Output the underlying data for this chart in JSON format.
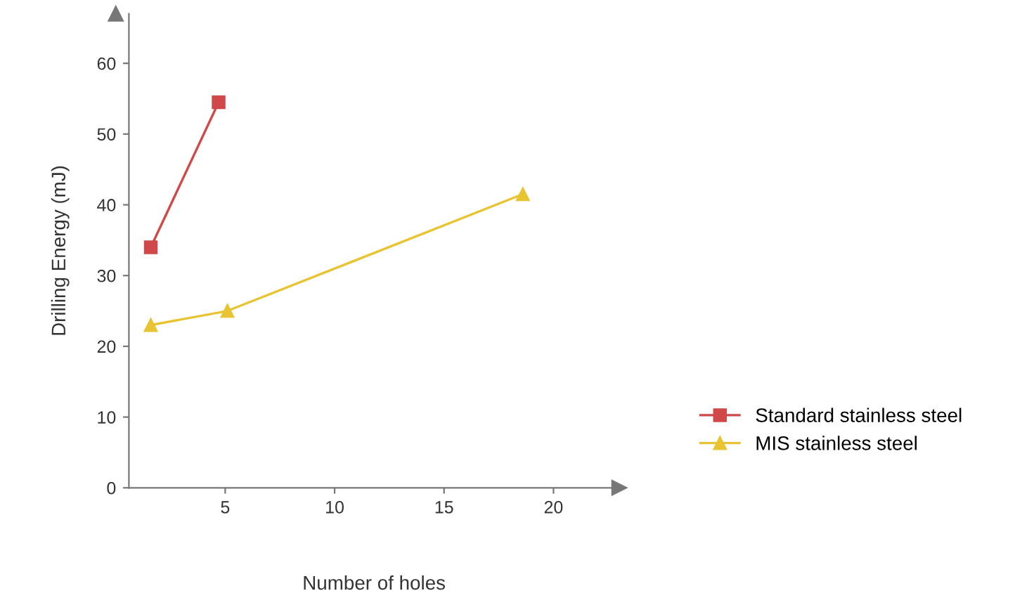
{
  "chart_data": {
    "type": "line",
    "xlabel": "Number of holes",
    "ylabel": "Drilling Energy (mJ)",
    "xlim": [
      0.6,
      23
    ],
    "ylim": [
      0,
      67
    ],
    "xticks": [
      5,
      10,
      15,
      20
    ],
    "yticks": [
      0,
      10,
      20,
      30,
      40,
      50,
      60
    ],
    "grid": false,
    "legend": "right",
    "line_style": "solid",
    "series": [
      {
        "name": "Standard stainless steel",
        "color": "#d04848",
        "marker": "square",
        "x": [
          1.6,
          4.7
        ],
        "values": [
          34,
          54.5
        ]
      },
      {
        "name": "MIS stainless steel",
        "color": "#e8c432",
        "marker": "triangle",
        "x": [
          1.6,
          5.1,
          18.6
        ],
        "values": [
          23,
          25,
          41.5
        ]
      }
    ]
  }
}
